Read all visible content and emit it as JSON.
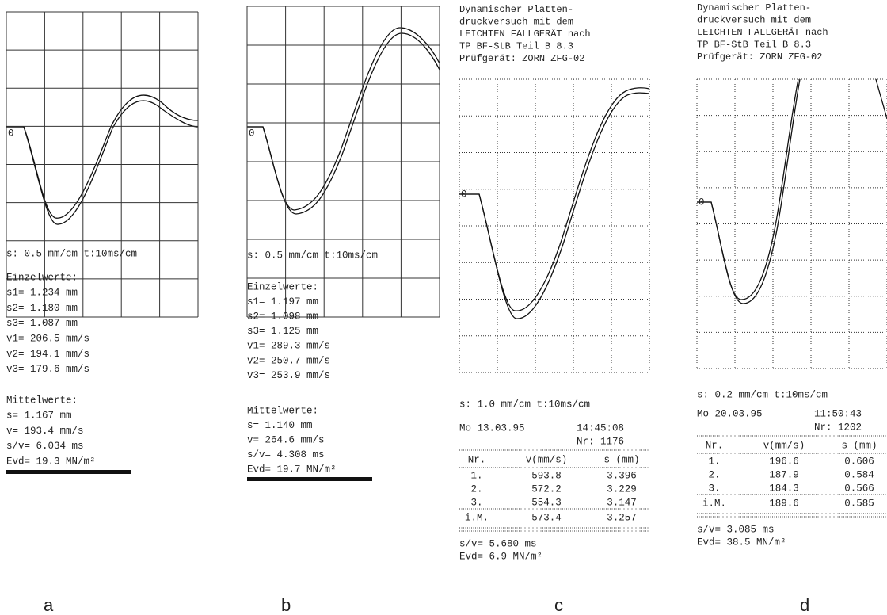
{
  "panels": [
    {
      "label": "a",
      "zero": "0",
      "scale": "s:  0.5 mm/cm   t:10ms/cm",
      "einzel_title": "Einzelwerte:",
      "einzel": [
        "s1= 1.234 mm",
        "s2= 1.180 mm",
        "s3= 1.087 mm",
        "v1= 206.5 mm/s",
        "v2= 194.1 mm/s",
        "v3= 179.6 mm/s"
      ],
      "mittel_title": "Mittelwerte:",
      "mittel": [
        "s= 1.167 mm",
        "v= 193.4 mm/s",
        "s/v= 6.034 ms",
        "Evd=  19.3 MN/m²"
      ]
    },
    {
      "label": "b",
      "zero": "0",
      "scale": "s:  0.5 mm/cm   t:10ms/cm",
      "einzel_title": "Einzelwerte:",
      "einzel": [
        "s1= 1.197 mm",
        "s2= 1.098 mm",
        "s3= 1.125 mm",
        "v1= 289.3 mm/s",
        "v2= 250.7 mm/s",
        "v3= 253.9 mm/s"
      ],
      "mittel_title": "Mittelwerte:",
      "mittel": [
        "s= 1.140 mm",
        "v= 264.6 mm/s",
        "s/v= 4.308 ms",
        "Evd=  19.7 MN/m²"
      ]
    },
    {
      "label": "c",
      "zero": "0",
      "header": [
        "Dynamischer Platten-",
        "druckversuch mit dem",
        "LEICHTEN FALLGERÄT nach",
        "TP BF-StB Teil B 8.3",
        "Prüfgerät: ZORN ZFG-02"
      ],
      "scale": "s:  1.0 mm/cm   t:10ms/cm",
      "date": "Mo 13.03.95",
      "time": "14:45:08",
      "nr": "Nr: 1176",
      "table": {
        "header": [
          "Nr.",
          "v(mm/s)",
          "s (mm)"
        ],
        "rows": [
          [
            "1.",
            "593.8",
            "3.396"
          ],
          [
            "2.",
            "572.2",
            "3.229"
          ],
          [
            "3.",
            "554.3",
            "3.147"
          ]
        ],
        "mean": [
          "i.M.",
          "573.4",
          "3.257"
        ]
      },
      "results": [
        "s/v= 5.680 ms",
        "Evd=    6.9 MN/m²"
      ]
    },
    {
      "label": "d",
      "zero": "0",
      "header": [
        "Dynamischer Platten-",
        "druckversuch mit dem",
        "LEICHTEN FALLGERÄT nach",
        "TP BF-StB Teil B 8.3",
        "Prüfgerät: ZORN ZFG-02"
      ],
      "scale": "s:  0.2 mm/cm   t:10ms/cm",
      "date": "Mo 20.03.95",
      "time": "11:50:43",
      "nr": "Nr: 1202",
      "table": {
        "header": [
          "Nr.",
          "v(mm/s)",
          "s (mm)"
        ],
        "rows": [
          [
            "1.",
            "196.6",
            "0.606"
          ],
          [
            "2.",
            "187.9",
            "0.584"
          ],
          [
            "3.",
            "184.3",
            "0.566"
          ]
        ],
        "mean": [
          "i.M.",
          "189.6",
          "0.585"
        ]
      },
      "results": [
        "s/v= 3.085 ms",
        "Evd=   38.5 MN/m²"
      ]
    }
  ]
}
